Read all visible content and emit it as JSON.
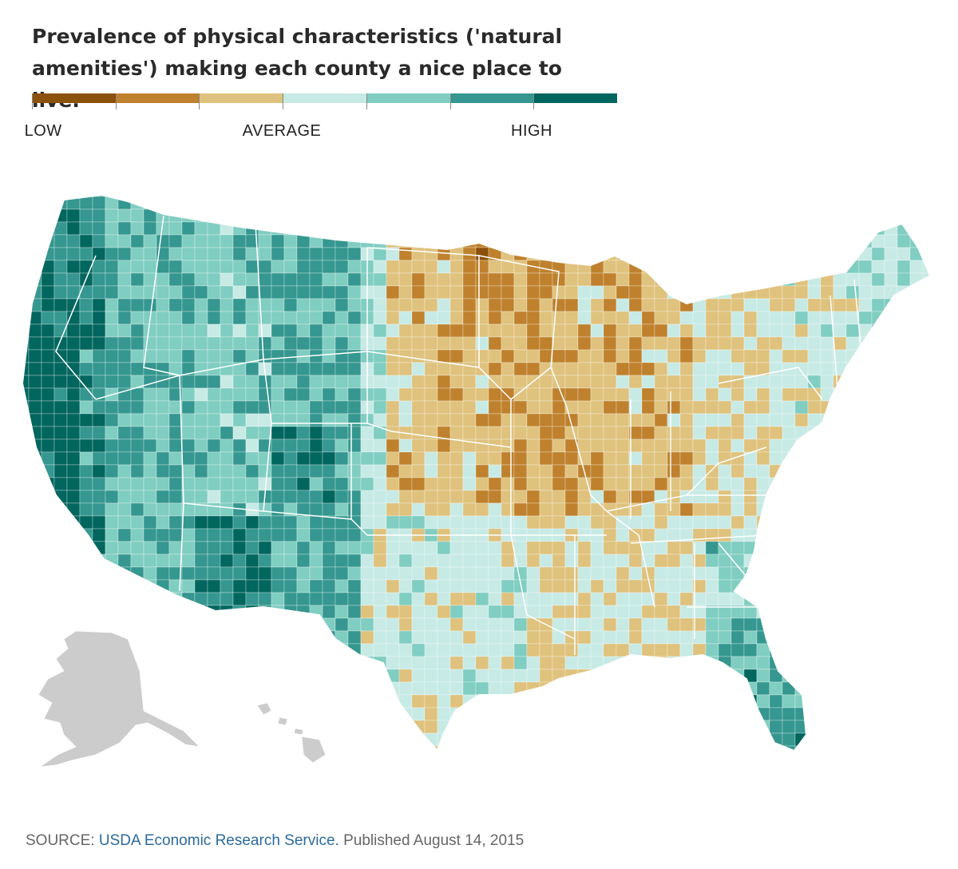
{
  "title": "Prevalence of physical characteristics ('natural amenities') making each county a nice place to live.",
  "legend": {
    "colors": [
      "#8c510a",
      "#bf812d",
      "#dfc27d",
      "#c7eae5",
      "#80cdc1",
      "#35978f",
      "#01665e"
    ],
    "labels": [
      {
        "text": "LOW",
        "key": "low"
      },
      {
        "text": "AVERAGE",
        "key": "average"
      },
      {
        "text": "HIGH",
        "key": "high"
      }
    ]
  },
  "map": {
    "alaska_hawaii_color": "#cccccc",
    "border_color": "#ffffff"
  },
  "source": {
    "prefix": "SOURCE: ",
    "link_text": "USDA Economic Research Service.",
    "suffix": " Published August 14, 2015"
  }
}
